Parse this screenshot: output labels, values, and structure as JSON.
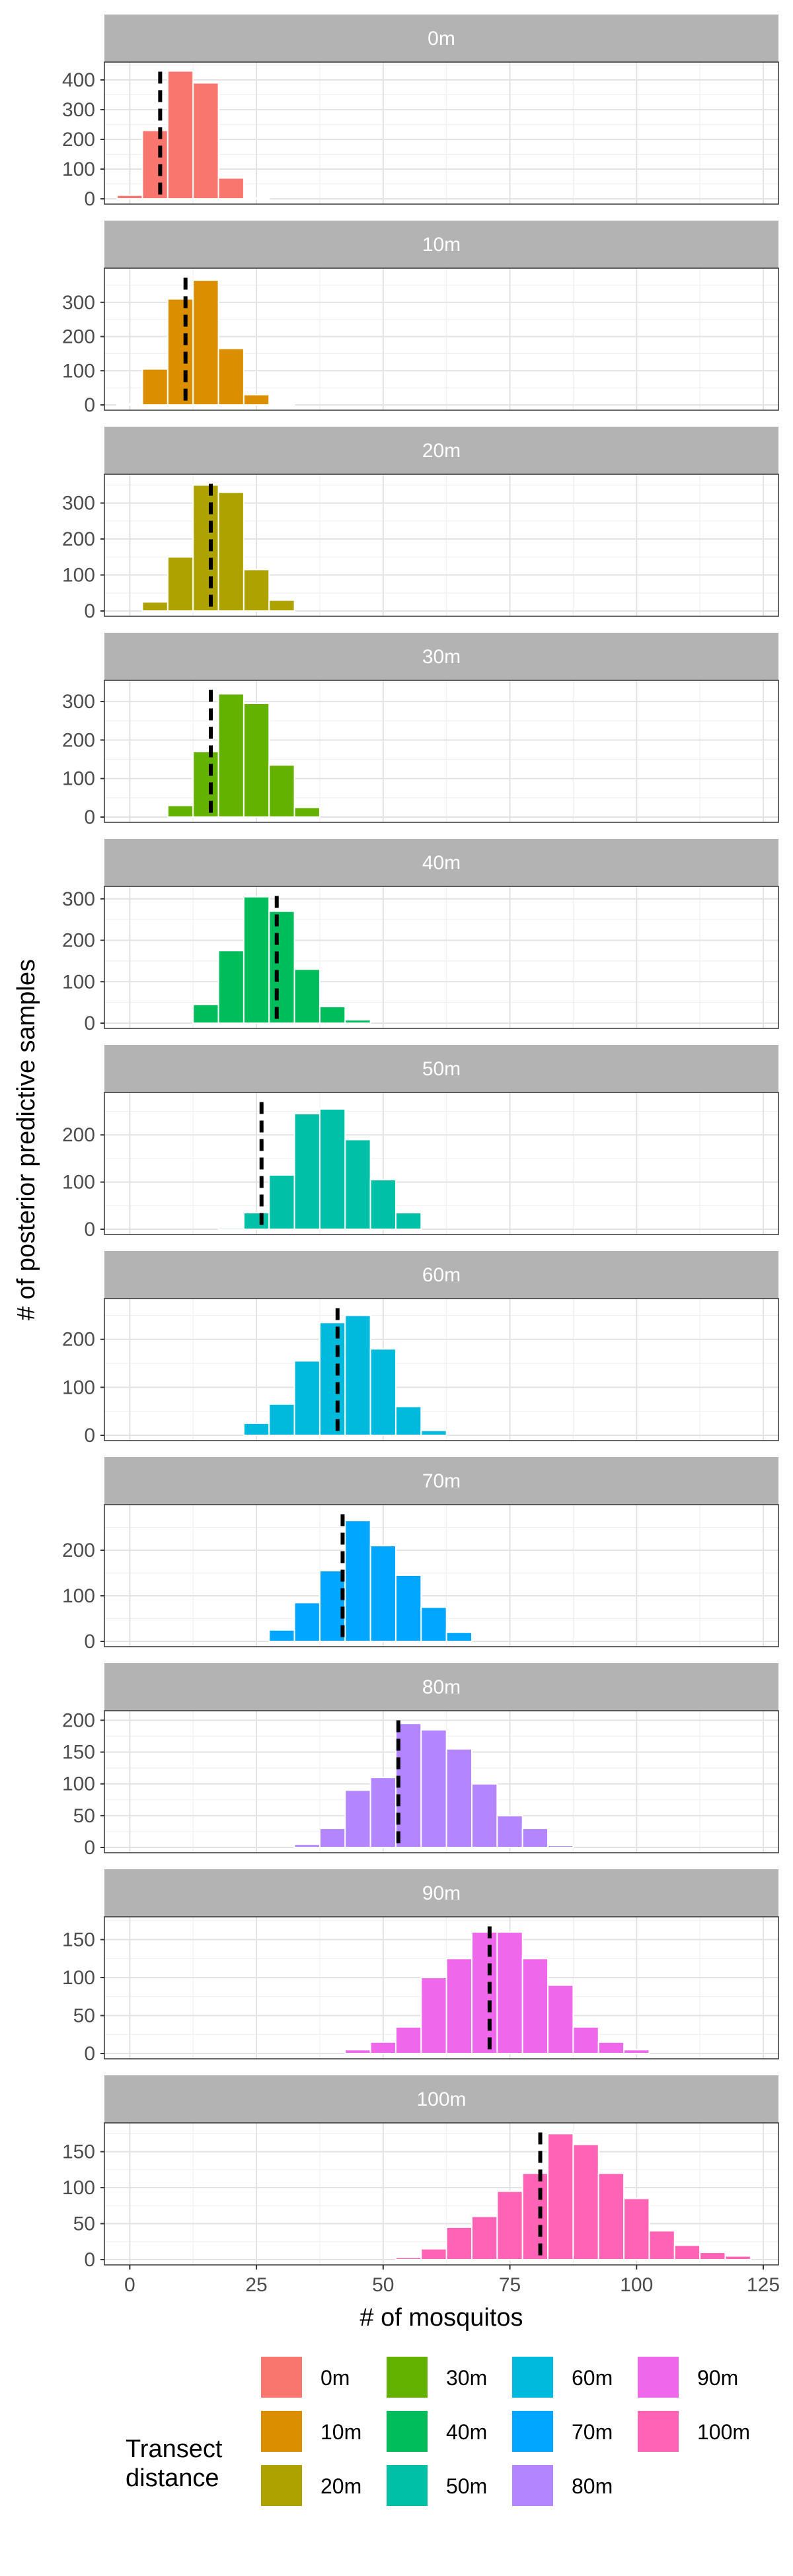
{
  "chart_data": {
    "type": "bar",
    "subtype": "faceted-histogram",
    "xlabel": "# of mosquitos",
    "ylabel": "# of posterior predictive samples",
    "xlim": [
      -5,
      128
    ],
    "x_ticks": [
      0,
      25,
      50,
      75,
      100,
      125
    ],
    "x_tick_labels": [
      "0",
      "25",
      "50",
      "75",
      "100",
      "125"
    ],
    "bin_width": 5,
    "grid": true,
    "legend": {
      "title": "Transect\ndistance",
      "placement": "bottom",
      "entries": [
        {
          "label": "0m",
          "color": "#F8766D"
        },
        {
          "label": "10m",
          "color": "#DB8E00"
        },
        {
          "label": "20m",
          "color": "#AEA200"
        },
        {
          "label": "30m",
          "color": "#64B200"
        },
        {
          "label": "40m",
          "color": "#00BD5C"
        },
        {
          "label": "50m",
          "color": "#00C1A7"
        },
        {
          "label": "60m",
          "color": "#00BADE"
        },
        {
          "label": "70m",
          "color": "#00A6FF"
        },
        {
          "label": "80m",
          "color": "#B385FF"
        },
        {
          "label": "90m",
          "color": "#EF67EB"
        },
        {
          "label": "100m",
          "color": "#FF63B6"
        }
      ]
    },
    "panels": [
      {
        "label": "0m",
        "color": "#F8766D",
        "y_ticks": [
          0,
          100,
          200,
          300,
          400
        ],
        "ymax": 460,
        "observed": 6,
        "bins": [
          [
            0,
            12
          ],
          [
            5,
            230
          ],
          [
            10,
            430
          ],
          [
            15,
            390
          ],
          [
            20,
            70
          ],
          [
            25,
            2
          ]
        ]
      },
      {
        "label": "10m",
        "color": "#DB8E00",
        "y_ticks": [
          0,
          100,
          200,
          300
        ],
        "ymax": 400,
        "observed": 11,
        "bins": [
          [
            0,
            3
          ],
          [
            5,
            105
          ],
          [
            10,
            310
          ],
          [
            15,
            365
          ],
          [
            20,
            165
          ],
          [
            25,
            30
          ],
          [
            30,
            3
          ]
        ]
      },
      {
        "label": "20m",
        "color": "#AEA200",
        "y_ticks": [
          0,
          100,
          200,
          300
        ],
        "ymax": 380,
        "observed": 16,
        "bins": [
          [
            5,
            25
          ],
          [
            10,
            150
          ],
          [
            15,
            350
          ],
          [
            20,
            330
          ],
          [
            25,
            115
          ],
          [
            30,
            30
          ]
        ]
      },
      {
        "label": "30m",
        "color": "#64B200",
        "y_ticks": [
          0,
          100,
          200,
          300
        ],
        "ymax": 355,
        "observed": 16,
        "bins": [
          [
            10,
            30
          ],
          [
            15,
            170
          ],
          [
            20,
            320
          ],
          [
            25,
            295
          ],
          [
            30,
            135
          ],
          [
            35,
            25
          ]
        ]
      },
      {
        "label": "40m",
        "color": "#00BD5C",
        "y_ticks": [
          0,
          100,
          200,
          300
        ],
        "ymax": 330,
        "observed": 29,
        "bins": [
          [
            15,
            45
          ],
          [
            20,
            175
          ],
          [
            25,
            305
          ],
          [
            30,
            270
          ],
          [
            35,
            130
          ],
          [
            40,
            40
          ],
          [
            45,
            8
          ]
        ]
      },
      {
        "label": "50m",
        "color": "#00C1A7",
        "y_ticks": [
          0,
          100,
          200
        ],
        "ymax": 290,
        "observed": 26,
        "bins": [
          [
            20,
            3
          ],
          [
            25,
            35
          ],
          [
            30,
            115
          ],
          [
            35,
            245
          ],
          [
            40,
            255
          ],
          [
            45,
            190
          ],
          [
            50,
            105
          ],
          [
            55,
            35
          ]
        ]
      },
      {
        "label": "60m",
        "color": "#00BADE",
        "y_ticks": [
          0,
          100,
          200
        ],
        "ymax": 285,
        "observed": 41,
        "bins": [
          [
            25,
            25
          ],
          [
            30,
            65
          ],
          [
            35,
            155
          ],
          [
            40,
            235
          ],
          [
            45,
            250
          ],
          [
            50,
            180
          ],
          [
            55,
            60
          ],
          [
            60,
            10
          ]
        ]
      },
      {
        "label": "70m",
        "color": "#00A6FF",
        "y_ticks": [
          0,
          100,
          200
        ],
        "ymax": 300,
        "observed": 42,
        "bins": [
          [
            30,
            25
          ],
          [
            35,
            85
          ],
          [
            40,
            155
          ],
          [
            45,
            265
          ],
          [
            50,
            210
          ],
          [
            55,
            145
          ],
          [
            60,
            75
          ],
          [
            65,
            20
          ]
        ]
      },
      {
        "label": "80m",
        "color": "#B385FF",
        "y_ticks": [
          0,
          50,
          100,
          150,
          200
        ],
        "ymax": 215,
        "observed": 53,
        "bins": [
          [
            35,
            5
          ],
          [
            40,
            30
          ],
          [
            45,
            90
          ],
          [
            50,
            110
          ],
          [
            55,
            195
          ],
          [
            60,
            185
          ],
          [
            65,
            155
          ],
          [
            70,
            100
          ],
          [
            75,
            50
          ],
          [
            80,
            30
          ],
          [
            85,
            3
          ]
        ]
      },
      {
        "label": "90m",
        "color": "#EF67EB",
        "y_ticks": [
          0,
          50,
          100,
          150
        ],
        "ymax": 180,
        "observed": 71,
        "bins": [
          [
            45,
            5
          ],
          [
            50,
            15
          ],
          [
            55,
            35
          ],
          [
            60,
            100
          ],
          [
            65,
            125
          ],
          [
            70,
            160
          ],
          [
            75,
            160
          ],
          [
            80,
            125
          ],
          [
            85,
            90
          ],
          [
            90,
            35
          ],
          [
            95,
            15
          ],
          [
            100,
            5
          ]
        ]
      },
      {
        "label": "100m",
        "color": "#FF63B6",
        "y_ticks": [
          0,
          50,
          100,
          150
        ],
        "ymax": 190,
        "observed": 81,
        "bins": [
          [
            55,
            3
          ],
          [
            60,
            15
          ],
          [
            65,
            45
          ],
          [
            70,
            60
          ],
          [
            75,
            95
          ],
          [
            80,
            120
          ],
          [
            85,
            175
          ],
          [
            90,
            160
          ],
          [
            95,
            120
          ],
          [
            100,
            85
          ],
          [
            105,
            40
          ],
          [
            110,
            20
          ],
          [
            115,
            10
          ],
          [
            120,
            5
          ]
        ]
      }
    ]
  }
}
